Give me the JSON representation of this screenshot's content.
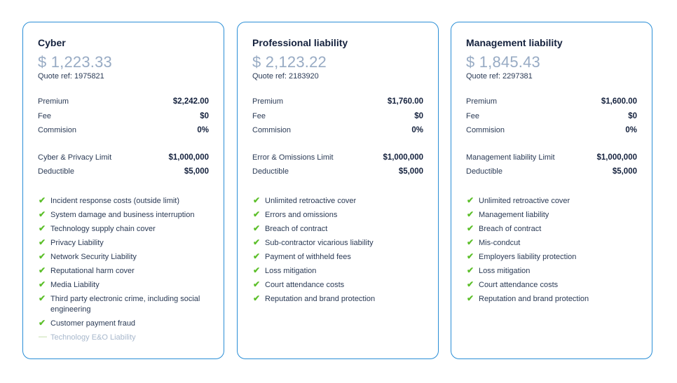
{
  "cards": [
    {
      "title": "Cyber",
      "price": "$ 1,223.33",
      "quote_ref": "Quote ref: 1975821",
      "premium_label": "Premium",
      "premium_value": "$2,242.00",
      "fee_label": "Fee",
      "fee_value": "$0",
      "commission_label": "Commision",
      "commission_value": "0%",
      "limit_label": "Cyber & Privacy Limit",
      "limit_value": "$1,000,000",
      "deductible_label": "Deductible",
      "deductible_value": "$5,000",
      "features": [
        {
          "text": "Incident response costs (outside limit)",
          "mark": "✔"
        },
        {
          "text": "System damage and business interruption",
          "mark": "✔"
        },
        {
          "text": "Technology supply chain cover",
          "mark": "✔"
        },
        {
          "text": "Privacy Liability",
          "mark": "✔"
        },
        {
          "text": "Network Security Liability",
          "mark": "✔"
        },
        {
          "text": "Reputational harm cover",
          "mark": "✔"
        },
        {
          "text": "Media Liability",
          "mark": "✔"
        },
        {
          "text": "Third party electronic crime, including social engineering",
          "mark": "✔"
        },
        {
          "text": "Customer payment fraud",
          "mark": "✔"
        },
        {
          "text": "Technology E&O Liability",
          "mark": "—",
          "disabled": true
        }
      ]
    },
    {
      "title": "Professional liability",
      "price": "$ 2,123.22",
      "quote_ref": "Quote ref: 2183920",
      "premium_label": "Premium",
      "premium_value": "$1,760.00",
      "fee_label": "Fee",
      "fee_value": "$0",
      "commission_label": "Commision",
      "commission_value": "0%",
      "limit_label": "Error & Omissions Limit",
      "limit_value": "$1,000,000",
      "deductible_label": "Deductible",
      "deductible_value": "$5,000",
      "features": [
        {
          "text": "Unlimited retroactive cover",
          "mark": "✔"
        },
        {
          "text": "Errors and omissions",
          "mark": "✔"
        },
        {
          "text": "Breach of contract",
          "mark": "✔"
        },
        {
          "text": "Sub-contractor vicarious liability",
          "mark": "✔"
        },
        {
          "text": "Payment of withheld fees",
          "mark": "✔"
        },
        {
          "text": "Loss mitigation",
          "mark": "✔"
        },
        {
          "text": "Court attendance costs",
          "mark": "✔"
        },
        {
          "text": "Reputation and brand protection",
          "mark": "✔"
        }
      ]
    },
    {
      "title": "Management liability",
      "price": "$ 1,845.43",
      "quote_ref": "Quote ref: 2297381",
      "premium_label": "Premium",
      "premium_value": "$1,600.00",
      "fee_label": "Fee",
      "fee_value": "$0",
      "commission_label": "Commision",
      "commission_value": "0%",
      "limit_label": "Management liability Limit",
      "limit_value": "$1,000,000",
      "deductible_label": "Deductible",
      "deductible_value": "$5,000",
      "features": [
        {
          "text": "Unlimited retroactive cover",
          "mark": "✔"
        },
        {
          "text": "Management liability",
          "mark": "✔"
        },
        {
          "text": "Breach of contract",
          "mark": "✔"
        },
        {
          "text": "Mis-condcut",
          "mark": "✔"
        },
        {
          "text": "Employers liability protection",
          "mark": "✔"
        },
        {
          "text": "Loss mitigation",
          "mark": "✔"
        },
        {
          "text": "Court attendance costs",
          "mark": "✔"
        },
        {
          "text": "Reputation and brand protection",
          "mark": "✔"
        }
      ]
    }
  ]
}
